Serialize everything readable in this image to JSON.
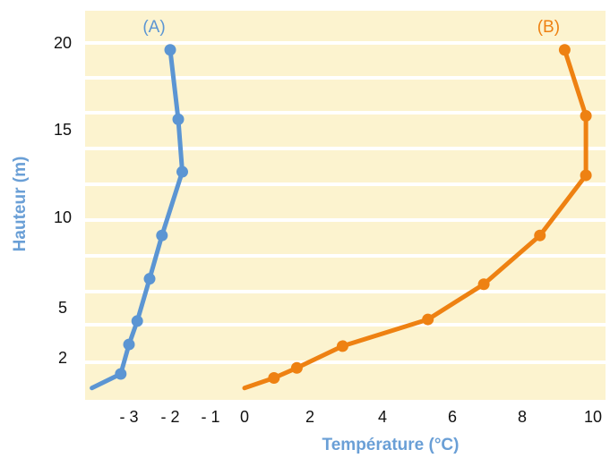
{
  "chart_data": {
    "type": "line",
    "xlabel": "Température (°C)",
    "ylabel": "Hauteur (m)",
    "xlim": [
      -4.2,
      10
    ],
    "ylim": [
      0,
      21.5
    ],
    "xticks": [
      {
        "value": -3,
        "label": "- 3"
      },
      {
        "value": -2,
        "label": "- 2"
      },
      {
        "value": -1,
        "label": "- 1"
      },
      {
        "value": 0,
        "label": "0"
      },
      {
        "value": 2,
        "label": "2"
      },
      {
        "value": 4,
        "label": "4"
      },
      {
        "value": 6,
        "label": "6"
      },
      {
        "value": 8,
        "label": "8"
      },
      {
        "value": 10,
        "label": "10"
      }
    ],
    "yticks": [
      2,
      5,
      10,
      15,
      20
    ],
    "grid": "horizontal white bands",
    "colors": {
      "background": "#fcf3cf",
      "grid": "#ffffff",
      "axis_title": "#6a9fd6"
    },
    "series": [
      {
        "name": "(A)",
        "color": "#5b95d3",
        "x": [
          -3.9,
          -3.2,
          -3.0,
          -2.8,
          -2.5,
          -2.2,
          -1.7,
          -1.8,
          -2.0
        ],
        "y": [
          0.5,
          1.2,
          2.8,
          4.2,
          6.6,
          9.0,
          12.6,
          15.6,
          19.6
        ],
        "markers": [
          false,
          true,
          true,
          true,
          true,
          true,
          true,
          true,
          true
        ]
      },
      {
        "name": "(B)",
        "color": "#ee8112",
        "x": [
          0.0,
          0.9,
          1.6,
          2.9,
          5.3,
          6.9,
          8.5,
          9.8,
          9.8,
          9.2
        ],
        "y": [
          0.5,
          1.0,
          1.5,
          2.7,
          4.3,
          6.3,
          9.0,
          12.4,
          15.8,
          19.6
        ],
        "markers": [
          false,
          true,
          true,
          true,
          true,
          true,
          true,
          true,
          true,
          true
        ]
      }
    ]
  }
}
